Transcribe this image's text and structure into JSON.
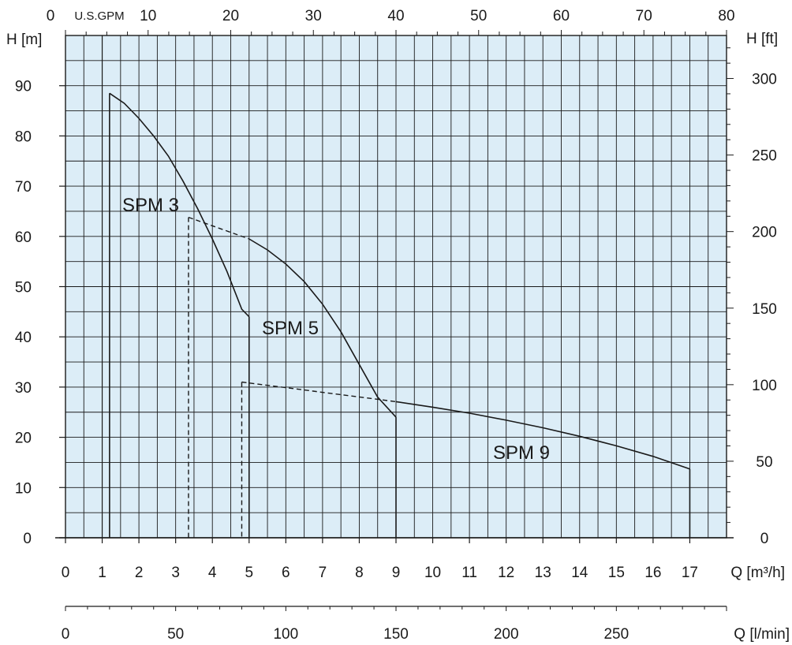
{
  "chart_data": {
    "type": "line",
    "plot_background": "#dcedf7",
    "line_color": "#1a1a1a",
    "axes": {
      "x_m3h": {
        "label": "Q [m³/h]",
        "range": [
          0,
          18
        ],
        "ticks": [
          "0",
          "1",
          "2",
          "3",
          "4",
          "5",
          "6",
          "7",
          "8",
          "9",
          "10",
          "11",
          "12",
          "13",
          "14",
          "15",
          "16",
          "17"
        ]
      },
      "x_gpm": {
        "label": "U.S.GPM",
        "range": [
          0,
          80
        ],
        "ticks": [
          "0",
          "10",
          "20",
          "30",
          "40",
          "50",
          "60",
          "70",
          "80"
        ]
      },
      "x_lmin": {
        "label": "Q [l/min]",
        "range": [
          0,
          300
        ],
        "ticks": [
          "0",
          "50",
          "100",
          "150",
          "200",
          "250"
        ]
      },
      "y_m": {
        "label": "H [m]",
        "range": [
          0,
          100
        ],
        "ticks": [
          "0",
          "10",
          "20",
          "30",
          "40",
          "50",
          "60",
          "70",
          "80",
          "90"
        ]
      },
      "y_ft": {
        "label": "H [ft]",
        "range": [
          0,
          328
        ],
        "ticks": [
          "0",
          "50",
          "100",
          "150",
          "200",
          "250",
          "300"
        ]
      }
    },
    "grid": true,
    "series": [
      {
        "name": "SPM 3",
        "curve": {
          "x": [
            1.2,
            1.6,
            2.0,
            2.4,
            2.8,
            3.2,
            3.6,
            4.0,
            4.4,
            4.8,
            5.0
          ],
          "y": [
            88.5,
            86.5,
            83.5,
            80.0,
            76.0,
            71.0,
            65.5,
            59.5,
            53.0,
            45.5,
            44.0
          ]
        },
        "operating_range": [
          1.2,
          5.0
        ],
        "dashed": {
          "x": [],
          "y": []
        }
      },
      {
        "name": "SPM 5",
        "curve": {
          "x": [
            3.35,
            5.0,
            5.5,
            6.0,
            6.5,
            7.0,
            7.5,
            8.0,
            8.5,
            9.0
          ],
          "y": [
            63.8,
            59.5,
            57.3,
            54.5,
            51.0,
            46.5,
            41.0,
            34.5,
            28.0,
            24.0
          ]
        },
        "operating_range": [
          3.35,
          9.0
        ],
        "dashed": {
          "x": [
            3.35,
            5.0
          ],
          "y": [
            63.8,
            59.5
          ]
        }
      },
      {
        "name": "SPM 9",
        "curve": {
          "x": [
            4.8,
            6.0,
            7.0,
            8.0,
            9.0,
            10.0,
            11.0,
            12.0,
            13.0,
            14.0,
            15.0,
            16.0,
            17.0
          ],
          "y": [
            31.0,
            29.8,
            28.9,
            28.0,
            27.1,
            26.0,
            24.8,
            23.4,
            21.9,
            20.2,
            18.3,
            16.2,
            13.7
          ]
        },
        "operating_range": [
          4.8,
          17.0
        ],
        "dashed": {
          "x": [
            4.8,
            9.0
          ],
          "y": [
            31.0,
            27.1
          ]
        }
      }
    ]
  }
}
